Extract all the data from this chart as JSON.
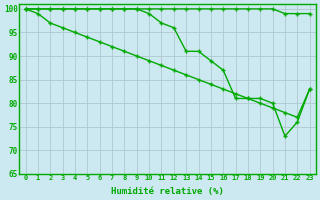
{
  "line_top": [
    100,
    100,
    100,
    100,
    100,
    100,
    100,
    100,
    100,
    100,
    100,
    100,
    100,
    100,
    100,
    100,
    100,
    100,
    100,
    100,
    100,
    99,
    99,
    99
  ],
  "line_mid": [
    100,
    99,
    97,
    96,
    95,
    94,
    93,
    92,
    91,
    90,
    89,
    88,
    87,
    86,
    85,
    84,
    83,
    82,
    81,
    80,
    79,
    78,
    77,
    83
  ],
  "line_bot": [
    100,
    100,
    100,
    100,
    100,
    100,
    100,
    100,
    100,
    100,
    99,
    97,
    96,
    91,
    91,
    89,
    87,
    81,
    81,
    81,
    80,
    73,
    76,
    83
  ],
  "x": [
    0,
    1,
    2,
    3,
    4,
    5,
    6,
    7,
    8,
    9,
    10,
    11,
    12,
    13,
    14,
    15,
    16,
    17,
    18,
    19,
    20,
    21,
    22,
    23
  ],
  "xlabel": "Humidité relative (%)",
  "ylim": [
    65,
    101
  ],
  "xlim": [
    -0.5,
    23.5
  ],
  "yticks": [
    65,
    70,
    75,
    80,
    85,
    90,
    95,
    100
  ],
  "xticks": [
    0,
    1,
    2,
    3,
    4,
    5,
    6,
    7,
    8,
    9,
    10,
    11,
    12,
    13,
    14,
    15,
    16,
    17,
    18,
    19,
    20,
    21,
    22,
    23
  ],
  "line_color": "#00aa00",
  "bg_color": "#cce8f0",
  "grid_color": "#b0c8d0",
  "marker": "+"
}
